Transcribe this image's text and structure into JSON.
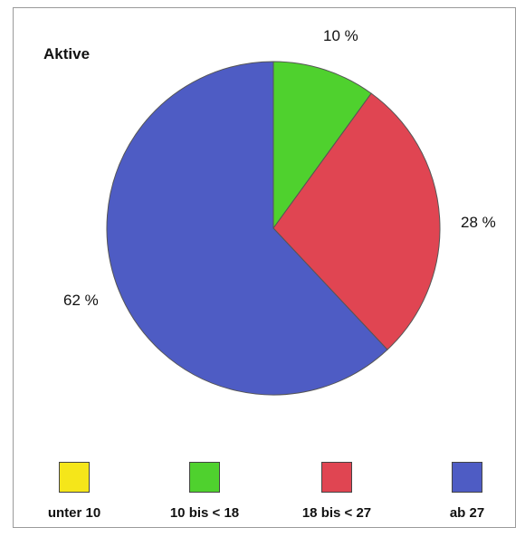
{
  "chart_data": {
    "type": "pie",
    "title": "Aktive",
    "categories": [
      "unter 10",
      "10 bis < 18",
      "18 bis < 27",
      "ab 27"
    ],
    "values": [
      0,
      10,
      28,
      62
    ],
    "labels": [
      "",
      "10 %",
      "28 %",
      "62 %"
    ],
    "colors": [
      "#f5e61a",
      "#4fd12e",
      "#e04552",
      "#4e5cc4"
    ],
    "start_angle_deg": 0,
    "direction": "clockwise",
    "legend_position": "bottom"
  }
}
